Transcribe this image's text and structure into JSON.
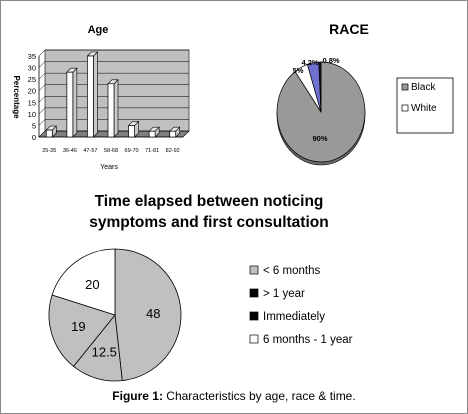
{
  "chart_data": [
    {
      "type": "bar",
      "title": "Age",
      "ylabel": "Percentage",
      "xlabel": "Years",
      "categories": [
        "25-35",
        "36-46",
        "47-57",
        "58-68",
        "69-70",
        "71-81",
        "82-92"
      ],
      "values": [
        3,
        28,
        35,
        23,
        5,
        2.5,
        2.5
      ],
      "ylim": [
        0,
        35
      ],
      "yticks": [
        0,
        5,
        10,
        15,
        20,
        25,
        30,
        35
      ],
      "grid": true,
      "style": "3d",
      "bar_color": "#ffffff",
      "wall_color": "#c0c0c0"
    },
    {
      "type": "pie",
      "title": "RACE",
      "style": "3d",
      "slices": [
        {
          "label": "Black",
          "value": 90,
          "display": "90%",
          "color": "#999999",
          "in_legend": true
        },
        {
          "label": "White",
          "value": 5,
          "display": "5%",
          "color": "#ffffff",
          "in_legend": true
        },
        {
          "label": "",
          "value": 4.2,
          "display": "4.2%",
          "color": "#7070d0",
          "in_legend": false
        },
        {
          "label": "",
          "value": 0.8,
          "display": "0.8%",
          "color": "#1a1a1a",
          "in_legend": false
        }
      ],
      "legend_position": "right"
    },
    {
      "type": "pie",
      "title": "Time elapsed between noticing symptoms and first consultation",
      "title_lines": [
        "Time elapsed between noticing",
        "symptoms and first consultation"
      ],
      "slices": [
        {
          "label": "< 6 months",
          "value": 48,
          "display": "48",
          "color": "#c0c0c0"
        },
        {
          "label": "> 1 year",
          "value": 12.5,
          "display": "12.5",
          "color": "#c0c0c0"
        },
        {
          "label": "Immediately",
          "value": 19,
          "display": "19",
          "color": "#c0c0c0"
        },
        {
          "label": "6 months - 1 year",
          "value": 20,
          "display": "20",
          "color": "#ffffff"
        }
      ],
      "legend_marker_colors": [
        "#c0c0c0",
        "#000000",
        "#000000",
        "#ffffff"
      ],
      "legend_position": "right"
    }
  ],
  "caption": {
    "label": "Figure 1:",
    "text": " Characteristics by age, race & time."
  }
}
